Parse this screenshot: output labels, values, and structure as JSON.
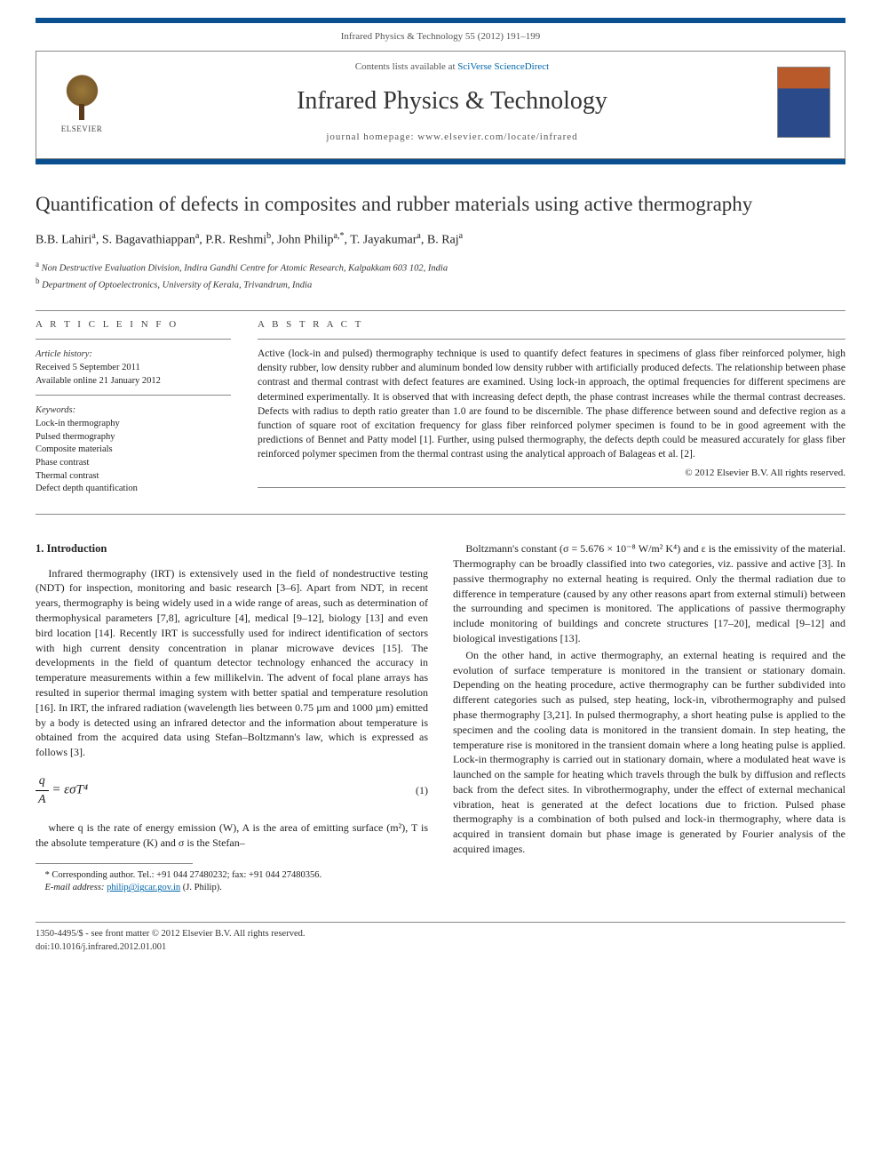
{
  "journal_ref": "Infrared Physics & Technology 55 (2012) 191–199",
  "header": {
    "contents_prefix": "Contents lists available at ",
    "contents_link": "SciVerse ScienceDirect",
    "journal_title": "Infrared Physics & Technology",
    "homepage_prefix": "journal homepage: ",
    "homepage_url": "www.elsevier.com/locate/infrared",
    "publisher": "ELSEVIER"
  },
  "article": {
    "title": "Quantification of defects in composites and rubber materials using active thermography",
    "authors_html": "B.B. Lahiri",
    "authors": [
      {
        "name": "B.B. Lahiri",
        "aff": "a"
      },
      {
        "name": "S. Bagavathiappan",
        "aff": "a"
      },
      {
        "name": "P.R. Reshmi",
        "aff": "b"
      },
      {
        "name": "John Philip",
        "aff": "a,*"
      },
      {
        "name": "T. Jayakumar",
        "aff": "a"
      },
      {
        "name": "B. Raj",
        "aff": "a"
      }
    ],
    "affiliations": {
      "a": "Non Destructive Evaluation Division, Indira Gandhi Centre for Atomic Research, Kalpakkam 603 102, India",
      "b": "Department of Optoelectronics, University of Kerala, Trivandrum, India"
    }
  },
  "info": {
    "heading": "A R T I C L E   I N F O",
    "history_label": "Article history:",
    "received": "Received 5 September 2011",
    "available": "Available online 21 January 2012",
    "keywords_label": "Keywords:",
    "keywords": [
      "Lock-in thermography",
      "Pulsed thermography",
      "Composite materials",
      "Phase contrast",
      "Thermal contrast",
      "Defect depth quantification"
    ]
  },
  "abstract": {
    "heading": "A B S T R A C T",
    "text": "Active (lock-in and pulsed) thermography technique is used to quantify defect features in specimens of glass fiber reinforced polymer, high density rubber, low density rubber and aluminum bonded low density rubber with artificially produced defects. The relationship between phase contrast and thermal contrast with defect features are examined. Using lock-in approach, the optimal frequencies for different specimens are determined experimentally. It is observed that with increasing defect depth, the phase contrast increases while the thermal contrast decreases. Defects with radius to depth ratio greater than 1.0 are found to be discernible. The phase difference between sound and defective region as a function of square root of excitation frequency for glass fiber reinforced polymer specimen is found to be in good agreement with the predictions of Bennet and Patty model [1]. Further, using pulsed thermography, the defects depth could be measured accurately for glass fiber reinforced polymer specimen from the thermal contrast using the analytical approach of Balageas et al. [2].",
    "copyright": "© 2012 Elsevier B.V. All rights reserved."
  },
  "section1_heading": "1. Introduction",
  "para1": "Infrared thermography (IRT) is extensively used in the field of nondestructive testing (NDT) for inspection, monitoring and basic research [3–6]. Apart from NDT, in recent years, thermography is being widely used in a wide range of areas, such as determination of thermophysical parameters [7,8], agriculture [4], medical [9–12], biology [13] and even bird location [14]. Recently IRT is successfully used for indirect identification of sectors with high current density concentration in planar microwave devices [15]. The developments in the field of quantum detector technology enhanced the accuracy in temperature measurements within a few millikelvin. The advent of focal plane arrays has resulted in superior thermal imaging system with better spatial and temperature resolution [16]. In IRT, the infrared radiation (wavelength lies between 0.75 µm and 1000 µm) emitted by a body is detected using an infrared detector and the information about temperature is obtained from the acquired data using Stefan–Boltzmann's law, which is expressed as follows [3].",
  "equation": {
    "label": "(1)",
    "body_lhs_num": "q",
    "body_lhs_den": "A",
    "body_rhs": " = εσT⁴"
  },
  "para2": "where q is the rate of energy emission (W), A is the area of emitting surface (m²), T is the absolute temperature (K) and σ is the Stefan–",
  "para3": "Boltzmann's constant (σ = 5.676 × 10⁻⁸ W/m² K⁴) and ε is the emissivity of the material. Thermography can be broadly classified into two categories, viz. passive and active [3]. In passive thermography no external heating is required. Only the thermal radiation due to difference in temperature (caused by any other reasons apart from external stimuli) between the surrounding and specimen is monitored. The applications of passive thermography include monitoring of buildings and concrete structures [17–20], medical [9–12] and biological investigations [13].",
  "para4": "On the other hand, in active thermography, an external heating is required and the evolution of surface temperature is monitored in the transient or stationary domain. Depending on the heating procedure, active thermography can be further subdivided into different categories such as pulsed, step heating, lock-in, vibrothermography and pulsed phase thermography [3,21]. In pulsed thermography, a short heating pulse is applied to the specimen and the cooling data is monitored in the transient domain. In step heating, the temperature rise is monitored in the transient domain where a long heating pulse is applied. Lock-in thermography is carried out in stationary domain, where a modulated heat wave is launched on the sample for heating which travels through the bulk by diffusion and reflects back from the defect sites. In vibrothermography, under the effect of external mechanical vibration, heat is generated at the defect locations due to friction. Pulsed phase thermography is a combination of both pulsed and lock-in thermography, where data is acquired in transient domain but phase image is generated by Fourier analysis of the acquired images.",
  "footnotes": {
    "corresponding": "* Corresponding author. Tel.: +91 044 27480232; fax: +91 044 27480356.",
    "email_label": "E-mail address: ",
    "email": "philip@igcar.gov.in",
    "email_person": " (J. Philip)."
  },
  "bottom": {
    "issn": "1350-4495/$ - see front matter © 2012 Elsevier B.V. All rights reserved.",
    "doi": "doi:10.1016/j.infrared.2012.01.001"
  },
  "colors": {
    "banner": "#0a4f8f",
    "link": "#0066aa",
    "rule": "#888888"
  }
}
